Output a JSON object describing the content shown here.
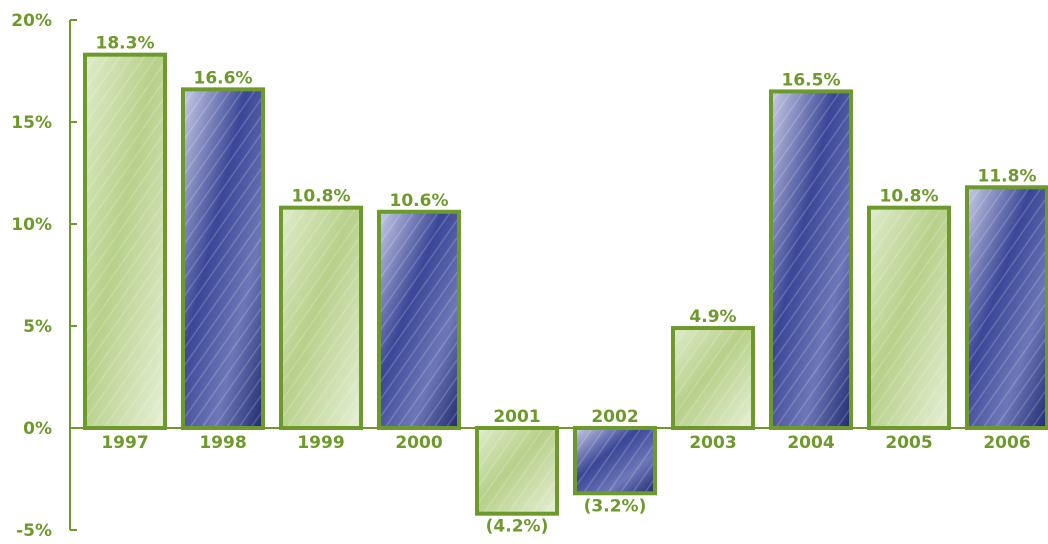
{
  "colors": {
    "accent": "#6e9a2c",
    "bar_fill_green": "#c7dca2",
    "bar_fill_blue": "#2f3a8a"
  },
  "chart_data": {
    "type": "bar",
    "categories": [
      "1997",
      "1998",
      "1999",
      "2000",
      "2001",
      "2002",
      "2003",
      "2004",
      "2005",
      "2006"
    ],
    "values": [
      18.3,
      16.6,
      10.8,
      10.6,
      -4.2,
      -3.2,
      4.9,
      16.5,
      10.8,
      11.8
    ],
    "data_labels": [
      "18.3%",
      "16.6%",
      "10.8%",
      "10.6%",
      "(4.2%)",
      "(3.2%)",
      "4.9%",
      "16.5%",
      "10.8%",
      "11.8%"
    ],
    "bar_styles": [
      "green",
      "blue",
      "green",
      "blue",
      "green",
      "blue",
      "green",
      "blue",
      "green",
      "blue"
    ],
    "yticks": [
      20,
      15,
      10,
      5,
      0,
      -5
    ],
    "ytick_labels": [
      "20%",
      "15%",
      "10%",
      "5%",
      "0%",
      "-5%"
    ],
    "ylim": [
      -5,
      20
    ],
    "title": "",
    "xlabel": "",
    "ylabel": "",
    "grid": false,
    "legend": "none"
  }
}
